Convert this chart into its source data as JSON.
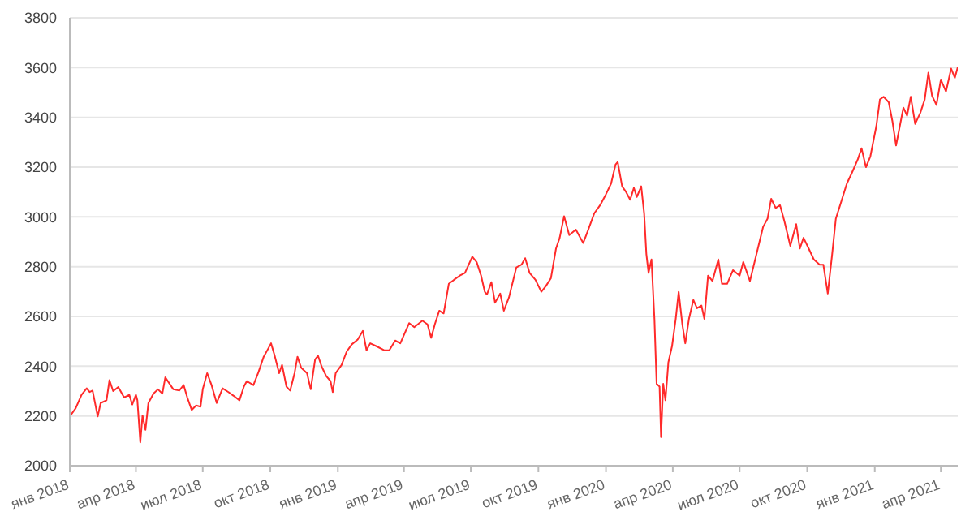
{
  "chart_data": {
    "type": "line",
    "x": [
      "2018-01-01",
      "2018-01-09",
      "2018-01-17",
      "2018-01-24",
      "2018-01-28",
      "2018-02-01",
      "2018-02-08",
      "2018-02-12",
      "2018-02-20",
      "2018-02-24",
      "2018-03-01",
      "2018-03-08",
      "2018-03-16",
      "2018-03-23",
      "2018-03-27",
      "2018-04-01",
      "2018-04-03",
      "2018-04-07",
      "2018-04-10",
      "2018-04-14",
      "2018-04-18",
      "2018-04-25",
      "2018-05-01",
      "2018-05-07",
      "2018-05-11",
      "2018-05-16",
      "2018-05-22",
      "2018-05-30",
      "2018-06-05",
      "2018-06-10",
      "2018-06-16",
      "2018-06-22",
      "2018-06-28",
      "2018-07-01",
      "2018-07-07",
      "2018-07-13",
      "2018-07-20",
      "2018-07-28",
      "2018-08-05",
      "2018-08-12",
      "2018-08-20",
      "2018-08-26",
      "2018-08-30",
      "2018-09-08",
      "2018-09-15",
      "2018-09-22",
      "2018-09-28",
      "2018-10-02",
      "2018-10-07",
      "2018-10-13",
      "2018-10-17",
      "2018-10-23",
      "2018-10-28",
      "2018-11-03",
      "2018-11-07",
      "2018-11-12",
      "2018-11-20",
      "2018-11-25",
      "2018-12-01",
      "2018-12-05",
      "2018-12-10",
      "2018-12-16",
      "2018-12-22",
      "2018-12-25",
      "2018-12-29",
      "2019-01-06",
      "2019-01-13",
      "2019-01-20",
      "2019-01-28",
      "2019-02-04",
      "2019-02-09",
      "2019-02-14",
      "2019-02-22",
      "2019-03-05",
      "2019-03-12",
      "2019-03-20",
      "2019-03-27",
      "2019-04-08",
      "2019-04-15",
      "2019-04-26",
      "2019-05-03",
      "2019-05-08",
      "2019-05-13",
      "2019-05-19",
      "2019-05-25",
      "2019-06-01",
      "2019-06-08",
      "2019-06-16",
      "2019-06-23",
      "2019-07-03",
      "2019-07-09",
      "2019-07-15",
      "2019-07-20",
      "2019-07-23",
      "2019-07-29",
      "2019-08-03",
      "2019-08-10",
      "2019-08-15",
      "2019-08-22",
      "2019-09-01",
      "2019-09-08",
      "2019-09-13",
      "2019-09-19",
      "2019-09-27",
      "2019-10-05",
      "2019-10-11",
      "2019-10-18",
      "2019-10-25",
      "2019-10-30",
      "2019-11-05",
      "2019-11-12",
      "2019-11-21",
      "2019-12-01",
      "2019-12-08",
      "2019-12-16",
      "2019-12-24",
      "2020-01-01",
      "2020-01-08",
      "2020-01-14",
      "2020-01-17",
      "2020-01-23",
      "2020-01-28",
      "2020-02-03",
      "2020-02-08",
      "2020-02-12",
      "2020-02-18",
      "2020-02-22",
      "2020-02-25",
      "2020-02-28",
      "2020-03-03",
      "2020-03-07",
      "2020-03-10",
      "2020-03-14",
      "2020-03-16",
      "2020-03-19",
      "2020-03-22",
      "2020-03-26",
      "2020-03-31",
      "2020-04-05",
      "2020-04-09",
      "2020-04-14",
      "2020-04-18",
      "2020-04-23",
      "2020-04-29",
      "2020-05-04",
      "2020-05-10",
      "2020-05-14",
      "2020-05-19",
      "2020-05-25",
      "2020-06-02",
      "2020-06-07",
      "2020-06-14",
      "2020-06-22",
      "2020-07-01",
      "2020-07-06",
      "2020-07-15",
      "2020-07-24",
      "2020-08-02",
      "2020-08-08",
      "2020-08-13",
      "2020-08-19",
      "2020-08-25",
      "2020-08-31",
      "2020-09-08",
      "2020-09-16",
      "2020-09-21",
      "2020-09-26",
      "2020-10-03",
      "2020-10-10",
      "2020-10-18",
      "2020-10-23",
      "2020-10-29",
      "2020-11-04",
      "2020-11-09",
      "2020-11-16",
      "2020-11-24",
      "2020-12-01",
      "2020-12-09",
      "2020-12-14",
      "2020-12-20",
      "2020-12-26",
      "2021-01-03",
      "2021-01-08",
      "2021-01-13",
      "2021-01-20",
      "2021-01-25",
      "2021-01-30",
      "2021-02-04",
      "2021-02-09",
      "2021-02-14",
      "2021-02-19",
      "2021-02-25",
      "2021-03-04",
      "2021-03-10",
      "2021-03-15",
      "2021-03-20",
      "2021-03-26",
      "2021-04-01",
      "2021-04-08",
      "2021-04-15",
      "2021-04-20",
      "2021-04-24"
    ],
    "series": [
      {
        "color": "#ff2a2a",
        "values": [
          2198,
          2231,
          2285,
          2311,
          2296,
          2302,
          2198,
          2252,
          2263,
          2344,
          2300,
          2316,
          2274,
          2285,
          2246,
          2285,
          2263,
          2094,
          2202,
          2144,
          2252,
          2290,
          2307,
          2290,
          2355,
          2333,
          2307,
          2302,
          2324,
          2274,
          2224,
          2242,
          2237,
          2307,
          2372,
          2324,
          2252,
          2311,
          2296,
          2281,
          2263,
          2318,
          2340,
          2324,
          2377,
          2438,
          2470,
          2492,
          2442,
          2372,
          2405,
          2318,
          2302,
          2372,
          2438,
          2394,
          2372,
          2307,
          2427,
          2442,
          2398,
          2361,
          2340,
          2296,
          2372,
          2405,
          2459,
          2488,
          2507,
          2542,
          2464,
          2492,
          2481,
          2464,
          2464,
          2503,
          2492,
          2573,
          2557,
          2583,
          2568,
          2514,
          2568,
          2623,
          2612,
          2731,
          2747,
          2764,
          2775,
          2840,
          2818,
          2764,
          2699,
          2688,
          2738,
          2655,
          2692,
          2623,
          2677,
          2797,
          2808,
          2834,
          2775,
          2747,
          2699,
          2721,
          2753,
          2873,
          2916,
          3003,
          2927,
          2949,
          2895,
          2949,
          3014,
          3047,
          3091,
          3134,
          3210,
          3221,
          3123,
          3102,
          3069,
          3117,
          3080,
          3123,
          3014,
          2851,
          2775,
          2829,
          2590,
          2329,
          2318,
          2115,
          2329,
          2263,
          2416,
          2481,
          2590,
          2699,
          2568,
          2492,
          2590,
          2666,
          2633,
          2644,
          2590,
          2764,
          2742,
          2829,
          2731,
          2731,
          2786,
          2764,
          2819,
          2742,
          2851,
          2960,
          2993,
          3073,
          3036,
          3047,
          2982,
          2884,
          2971,
          2873,
          2916,
          2873,
          2829,
          2808,
          2808,
          2692,
          2851,
          2993,
          3058,
          3134,
          3178,
          3232,
          3276,
          3200,
          3243,
          3363,
          3472,
          3483,
          3461,
          3385,
          3287,
          3363,
          3439,
          3407,
          3483,
          3374,
          3418,
          3472,
          3580,
          3487,
          3450,
          3552,
          3504,
          3596,
          3559,
          3602
        ]
      }
    ],
    "xlim": [
      "2018-01-01",
      "2021-04-24"
    ],
    "xticks": [
      {
        "value": "2018-01-01",
        "label": "янв 2018"
      },
      {
        "value": "2018-04-01",
        "label": "апр 2018"
      },
      {
        "value": "2018-07-01",
        "label": "июл 2018"
      },
      {
        "value": "2018-10-01",
        "label": "окт 2018"
      },
      {
        "value": "2019-01-01",
        "label": "янв 2019"
      },
      {
        "value": "2019-04-01",
        "label": "апр 2019"
      },
      {
        "value": "2019-07-01",
        "label": "июл 2019"
      },
      {
        "value": "2019-10-01",
        "label": "окт 2019"
      },
      {
        "value": "2020-01-01",
        "label": "янв 2020"
      },
      {
        "value": "2020-04-01",
        "label": "апр 2020"
      },
      {
        "value": "2020-07-01",
        "label": "июл 2020"
      },
      {
        "value": "2020-10-01",
        "label": "окт 2020"
      },
      {
        "value": "2021-01-01",
        "label": "янв 2021"
      },
      {
        "value": "2021-04-01",
        "label": "апр 2021"
      }
    ],
    "ylim": [
      2000,
      3800
    ],
    "yticks": [
      2000,
      2200,
      2400,
      2600,
      2800,
      3000,
      3200,
      3400,
      3600,
      3800
    ],
    "grid": "y",
    "marker": "none",
    "line_style": "solid",
    "legend": false
  }
}
